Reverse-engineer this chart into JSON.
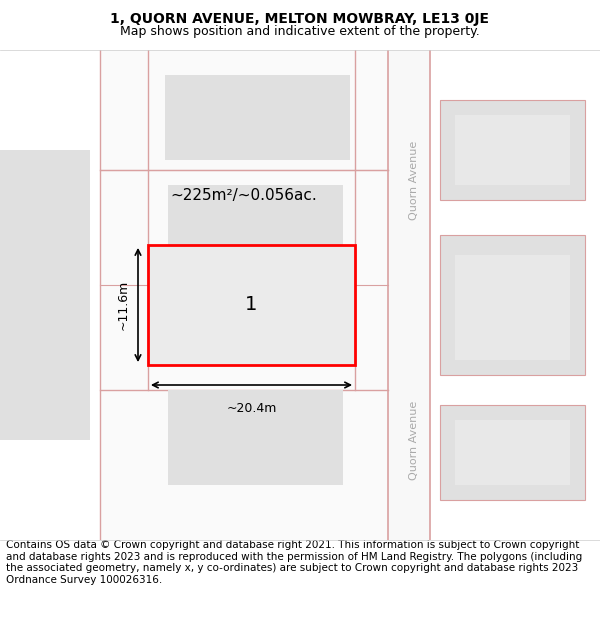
{
  "title_line1": "1, QUORN AVENUE, MELTON MOWBRAY, LE13 0JE",
  "title_line2": "Map shows position and indicative extent of the property.",
  "footer_text": "Contains OS data © Crown copyright and database right 2021. This information is subject to Crown copyright and database rights 2023 and is reproduced with the permission of HM Land Registry. The polygons (including the associated geometry, namely x, y co-ordinates) are subject to Crown copyright and database rights 2023 Ordnance Survey 100026316.",
  "bg_color": "#ffffff",
  "map_bg": "#f5f5f5",
  "block_fill": "#e0e0e0",
  "block_stroke": "#d9a0a0",
  "highlight_fill": "#ebebeb",
  "highlight_stroke": "#ff0000",
  "road_line_color": "#d9a0a0",
  "street_label_color": "#aaaaaa",
  "area_label": "~225m²/~0.056ac.",
  "plot_label": "1",
  "dim_width": "~20.4m",
  "dim_height": "~11.6m",
  "title_fontsize": 10,
  "subtitle_fontsize": 9,
  "footer_fontsize": 7.5
}
